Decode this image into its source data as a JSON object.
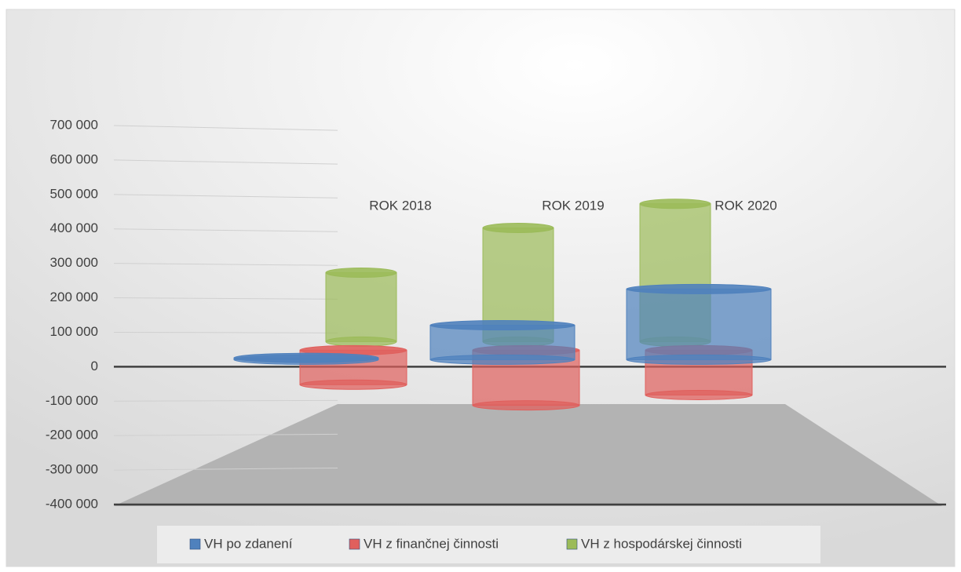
{
  "chart_data": {
    "type": "cylinder",
    "categories": [
      "ROK 2018",
      "ROK 2019",
      "ROK 2020"
    ],
    "series": [
      {
        "name": "VH po zdanení",
        "color": "#4f81bd",
        "values": [
          5000,
          100000,
          205000
        ]
      },
      {
        "name": "VH z finančnej činnosti",
        "color": "#e0605d",
        "values": [
          -100000,
          -160000,
          -130000
        ]
      },
      {
        "name": "VH z hospodárskej činnosti",
        "color": "#9bbb59",
        "values": [
          200000,
          330000,
          400000
        ]
      }
    ],
    "ylim": [
      -400000,
      700000
    ],
    "yticks": [
      {
        "value": -400000,
        "label": "-400 000"
      },
      {
        "value": -300000,
        "label": "-300 000"
      },
      {
        "value": -200000,
        "label": "-200 000"
      },
      {
        "value": -100000,
        "label": "-100 000"
      },
      0,
      {
        "value": 100000,
        "label": "100 000"
      },
      {
        "value": 200000,
        "label": "200 000"
      },
      {
        "value": 300000,
        "label": "300 000"
      },
      {
        "value": 400000,
        "label": "400 000"
      },
      {
        "value": 500000,
        "label": "500 000"
      },
      {
        "value": 600000,
        "label": "600 000"
      },
      {
        "value": 700000,
        "label": "700 000"
      }
    ],
    "grid": true
  }
}
